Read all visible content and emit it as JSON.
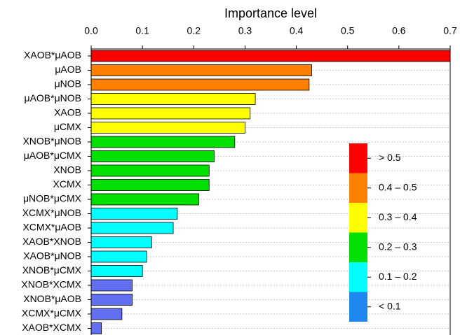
{
  "chart_data": {
    "type": "bar",
    "orientation": "horizontal",
    "x_label": "Importance level",
    "categories": [
      "XAOB*μAOB",
      "μAOB",
      "μNOB",
      "μAOB*μNOB",
      "XAOB",
      "μCMX",
      "XNOB*μNOB",
      "μAOB*μCMX",
      "XNOB",
      "XCMX",
      "μNOB*μCMX",
      "XCMX*μNOB",
      "XCMX*μAOB",
      "XAOB*XNOB",
      "XAOB*μNOB",
      "XNOB*μCMX",
      "XNOB*XCMX",
      "XNOB*μAOB",
      "XCMX*μCMX",
      "XAOB*XCMX"
    ],
    "values": [
      0.7,
      0.43,
      0.425,
      0.32,
      0.31,
      0.3,
      0.28,
      0.24,
      0.23,
      0.23,
      0.21,
      0.168,
      0.16,
      0.118,
      0.108,
      0.1,
      0.08,
      0.08,
      0.06,
      0.02
    ],
    "colors": [
      "#ff0000",
      "#ff8000",
      "#ff8000",
      "#ffff00",
      "#ffff00",
      "#ffff00",
      "#00e000",
      "#00e000",
      "#00e000",
      "#00e000",
      "#00e000",
      "#00ffff",
      "#00ffff",
      "#00ffff",
      "#00ffff",
      "#00ffff",
      "#6070f0",
      "#6070f0",
      "#6070f0",
      "#6070f0"
    ],
    "xlim": [
      0,
      0.7
    ],
    "xticks": [
      {
        "value": 0,
        "label": "0.0"
      },
      0.1,
      0.2,
      0.3,
      0.4,
      0.5,
      0.6,
      0.7
    ],
    "grid": true,
    "legend_position": "lower right",
    "legend": [
      {
        "label": "> 0.5",
        "color": "#ff0000"
      },
      {
        "label": "0.4 – 0.5",
        "color": "#ff8000"
      },
      {
        "label": "0.3 – 0.4",
        "color": "#ffff00"
      },
      {
        "label": "0.2 – 0.3",
        "color": "#00e000"
      },
      {
        "label": "0.1 – 0.2",
        "color": "#00ffff"
      },
      {
        "label": "< 0.1",
        "color": "#1e88f0"
      }
    ]
  }
}
